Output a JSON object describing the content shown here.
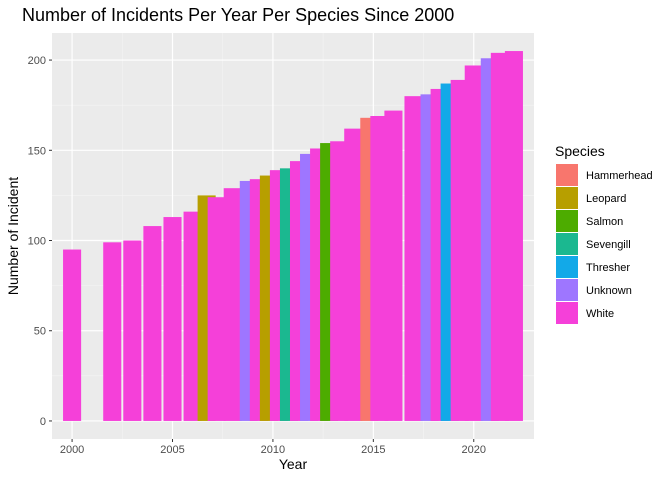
{
  "chart_data": {
    "type": "bar",
    "title": "Number of Incidents Per Year Per Species Since 2000",
    "xlabel": "Year",
    "ylabel": "Number of Incident",
    "xlim": [
      1999,
      2023
    ],
    "ylim": [
      -10,
      215
    ],
    "x_ticks": [
      2000,
      2005,
      2010,
      2015,
      2020
    ],
    "y_ticks": [
      0,
      50,
      100,
      150,
      200
    ],
    "grid": true,
    "legend": {
      "title": "Species",
      "placement": "right",
      "entries": [
        {
          "name": "Hammerhead",
          "color": "#F8766D"
        },
        {
          "name": "Leopard",
          "color": "#B79F00"
        },
        {
          "name": "Salmon",
          "color": "#4DAC00"
        },
        {
          "name": "Sevengill",
          "color": "#1BB890"
        },
        {
          "name": "Thresher",
          "color": "#12A9E8"
        },
        {
          "name": "Unknown",
          "color": "#9E76FF"
        },
        {
          "name": "White",
          "color": "#F540D9"
        }
      ]
    },
    "bars": [
      {
        "x": 2000.0,
        "y": 95,
        "species": "White"
      },
      {
        "x": 2002.0,
        "y": 99,
        "species": "White"
      },
      {
        "x": 2003.0,
        "y": 100,
        "species": "White"
      },
      {
        "x": 2004.0,
        "y": 108,
        "species": "White"
      },
      {
        "x": 2005.0,
        "y": 113,
        "species": "White"
      },
      {
        "x": 2006.0,
        "y": 116,
        "species": "White"
      },
      {
        "x": 2006.7,
        "y": 125,
        "species": "Leopard"
      },
      {
        "x": 2007.2,
        "y": 124,
        "species": "White"
      },
      {
        "x": 2008.0,
        "y": 129,
        "species": "White"
      },
      {
        "x": 2008.8,
        "y": 133,
        "species": "Unknown"
      },
      {
        "x": 2009.3,
        "y": 134,
        "species": "White"
      },
      {
        "x": 2009.8,
        "y": 136,
        "species": "Leopard"
      },
      {
        "x": 2010.3,
        "y": 139,
        "species": "White"
      },
      {
        "x": 2010.8,
        "y": 140,
        "species": "Sevengill"
      },
      {
        "x": 2011.3,
        "y": 144,
        "species": "White"
      },
      {
        "x": 2011.8,
        "y": 148,
        "species": "Unknown"
      },
      {
        "x": 2012.3,
        "y": 151,
        "species": "White"
      },
      {
        "x": 2012.8,
        "y": 154,
        "species": "Salmon"
      },
      {
        "x": 2013.3,
        "y": 155,
        "species": "White"
      },
      {
        "x": 2014.0,
        "y": 162,
        "species": "White"
      },
      {
        "x": 2014.8,
        "y": 168,
        "species": "Hammerhead"
      },
      {
        "x": 2015.3,
        "y": 169,
        "species": "White"
      },
      {
        "x": 2016.0,
        "y": 172,
        "species": "White"
      },
      {
        "x": 2017.0,
        "y": 180,
        "species": "White"
      },
      {
        "x": 2017.8,
        "y": 181,
        "species": "Unknown"
      },
      {
        "x": 2018.3,
        "y": 184,
        "species": "White"
      },
      {
        "x": 2018.8,
        "y": 187,
        "species": "Thresher"
      },
      {
        "x": 2019.3,
        "y": 189,
        "species": "White"
      },
      {
        "x": 2020.0,
        "y": 197,
        "species": "White"
      },
      {
        "x": 2020.8,
        "y": 201,
        "species": "Unknown"
      },
      {
        "x": 2021.3,
        "y": 204,
        "species": "White"
      },
      {
        "x": 2022.0,
        "y": 205,
        "species": "White"
      }
    ]
  }
}
